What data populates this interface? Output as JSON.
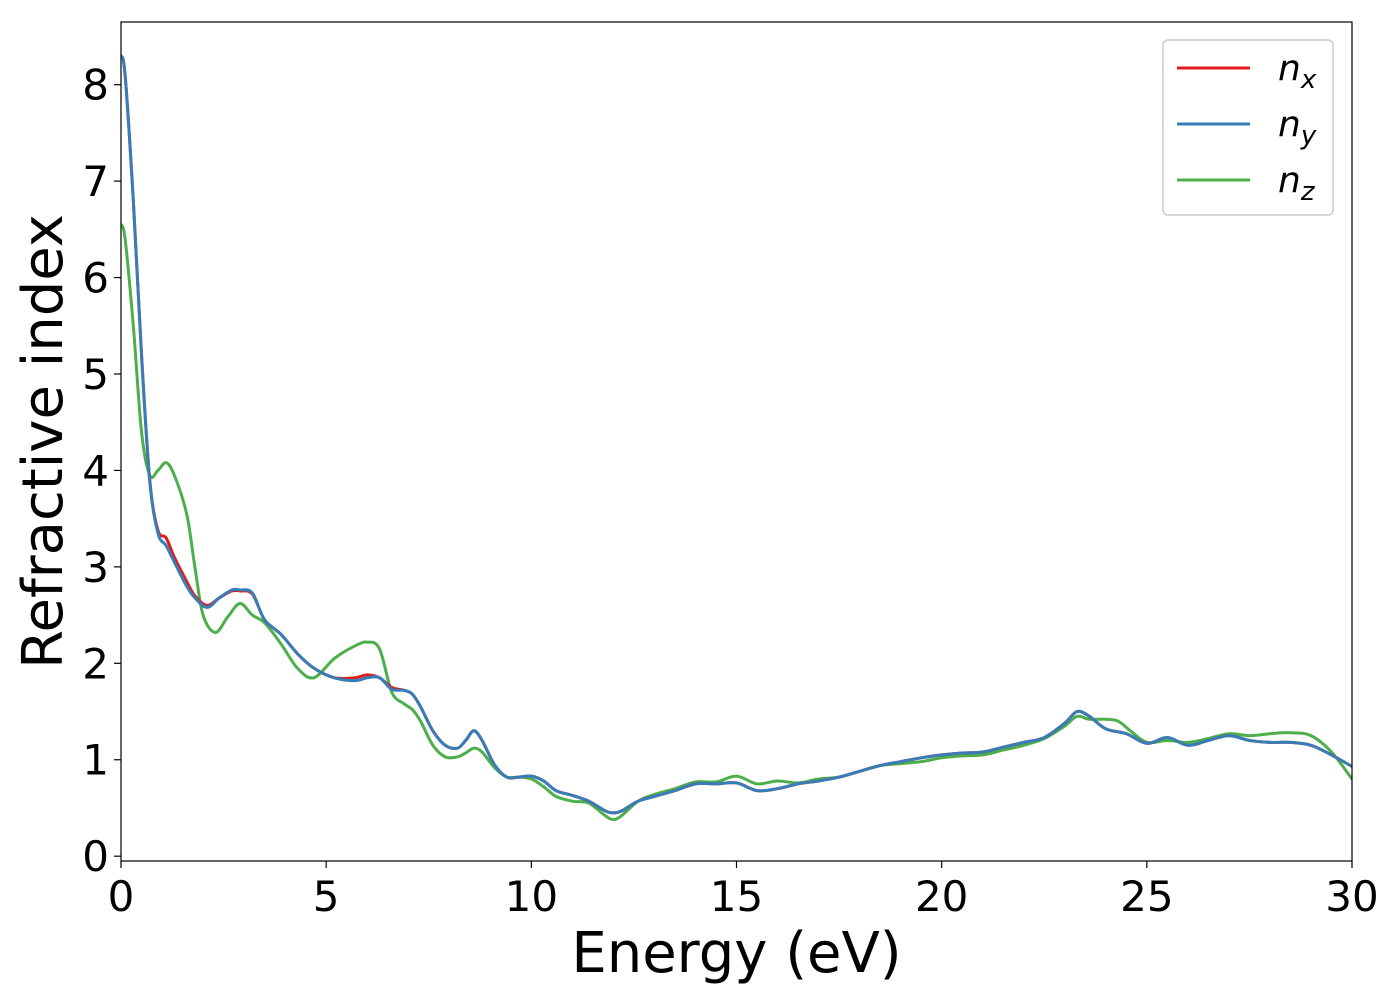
{
  "chart_data": {
    "type": "line",
    "xlabel": "Energy (eV)",
    "ylabel": "Refractive index",
    "xlim": [
      0,
      30
    ],
    "ylim": [
      -0.05,
      8.65
    ],
    "xticks": [
      0,
      5,
      10,
      15,
      20,
      25,
      30
    ],
    "yticks": [
      0,
      1,
      2,
      3,
      4,
      5,
      6,
      7,
      8
    ],
    "grid": false,
    "legend_position": "top-right",
    "series": [
      {
        "name": "n",
        "sub": "x",
        "color": "#e41a1c",
        "x": [
          0,
          0.1,
          0.3,
          0.5,
          0.7,
          0.9,
          1.1,
          1.3,
          1.6,
          1.8,
          2.1,
          2.4,
          2.7,
          2.9,
          3.2,
          3.5,
          3.9,
          4.3,
          4.7,
          5.2,
          5.7,
          6.0,
          6.3,
          6.6,
          6.9,
          7.1,
          7.3,
          7.6,
          7.9,
          8.2,
          8.4,
          8.6,
          8.8,
          9.1,
          9.4,
          9.7,
          10.0,
          10.3,
          10.6,
          11.0,
          11.4,
          11.8,
          12.0,
          12.2,
          12.6,
          13.0,
          13.5,
          14.0,
          14.5,
          15.0,
          15.5,
          16.0,
          16.5,
          17.0,
          17.5,
          18.0,
          18.5,
          19.0,
          19.5,
          20.0,
          20.5,
          21.0,
          21.5,
          22.0,
          22.5,
          23.0,
          23.3,
          23.6,
          24.0,
          24.5,
          25.0,
          25.5,
          26.0,
          26.5,
          27.0,
          27.5,
          28.0,
          28.5,
          29.0,
          29.5,
          30.0
        ],
        "y": [
          8.3,
          8.1,
          6.8,
          5.2,
          3.9,
          3.38,
          3.3,
          3.1,
          2.85,
          2.7,
          2.6,
          2.68,
          2.75,
          2.75,
          2.72,
          2.45,
          2.3,
          2.1,
          1.95,
          1.85,
          1.85,
          1.88,
          1.85,
          1.75,
          1.72,
          1.68,
          1.55,
          1.3,
          1.15,
          1.12,
          1.2,
          1.3,
          1.2,
          0.95,
          0.82,
          0.82,
          0.83,
          0.78,
          0.68,
          0.63,
          0.57,
          0.47,
          0.45,
          0.47,
          0.57,
          0.62,
          0.68,
          0.75,
          0.75,
          0.76,
          0.68,
          0.7,
          0.75,
          0.78,
          0.82,
          0.88,
          0.94,
          0.98,
          1.02,
          1.05,
          1.07,
          1.08,
          1.13,
          1.18,
          1.23,
          1.38,
          1.5,
          1.45,
          1.32,
          1.27,
          1.17,
          1.23,
          1.15,
          1.2,
          1.25,
          1.2,
          1.18,
          1.18,
          1.15,
          1.05,
          0.93
        ]
      },
      {
        "name": "n",
        "sub": "y",
        "color": "#377eb8",
        "x": [
          0,
          0.1,
          0.3,
          0.5,
          0.7,
          0.9,
          1.1,
          1.3,
          1.6,
          1.8,
          2.1,
          2.4,
          2.7,
          2.9,
          3.2,
          3.5,
          3.9,
          4.3,
          4.7,
          5.2,
          5.7,
          6.0,
          6.3,
          6.6,
          6.9,
          7.1,
          7.3,
          7.6,
          7.9,
          8.2,
          8.4,
          8.6,
          8.8,
          9.1,
          9.4,
          9.7,
          10.0,
          10.3,
          10.6,
          11.0,
          11.4,
          11.8,
          12.0,
          12.2,
          12.6,
          13.0,
          13.5,
          14.0,
          14.5,
          15.0,
          15.5,
          16.0,
          16.5,
          17.0,
          17.5,
          18.0,
          18.5,
          19.0,
          19.5,
          20.0,
          20.5,
          21.0,
          21.5,
          22.0,
          22.5,
          23.0,
          23.3,
          23.6,
          24.0,
          24.5,
          25.0,
          25.5,
          26.0,
          26.5,
          27.0,
          27.5,
          28.0,
          28.5,
          29.0,
          29.5,
          30.0
        ],
        "y": [
          8.3,
          8.1,
          6.8,
          5.2,
          3.9,
          3.35,
          3.22,
          3.05,
          2.8,
          2.68,
          2.58,
          2.68,
          2.76,
          2.76,
          2.73,
          2.45,
          2.3,
          2.1,
          1.95,
          1.85,
          1.82,
          1.85,
          1.85,
          1.73,
          1.72,
          1.68,
          1.55,
          1.3,
          1.15,
          1.12,
          1.2,
          1.3,
          1.2,
          0.95,
          0.82,
          0.82,
          0.83,
          0.78,
          0.68,
          0.63,
          0.57,
          0.47,
          0.45,
          0.47,
          0.57,
          0.62,
          0.68,
          0.75,
          0.75,
          0.76,
          0.68,
          0.7,
          0.75,
          0.78,
          0.82,
          0.88,
          0.94,
          0.98,
          1.02,
          1.05,
          1.07,
          1.08,
          1.13,
          1.18,
          1.23,
          1.38,
          1.5,
          1.45,
          1.32,
          1.27,
          1.17,
          1.23,
          1.15,
          1.2,
          1.25,
          1.2,
          1.18,
          1.18,
          1.15,
          1.05,
          0.93
        ]
      },
      {
        "name": "n",
        "sub": "z",
        "color": "#4daf4a",
        "x": [
          0,
          0.1,
          0.3,
          0.5,
          0.7,
          0.9,
          1.1,
          1.3,
          1.6,
          1.8,
          2.0,
          2.3,
          2.6,
          2.9,
          3.2,
          3.5,
          3.9,
          4.3,
          4.7,
          5.2,
          5.7,
          6.0,
          6.3,
          6.6,
          6.9,
          7.1,
          7.3,
          7.6,
          7.9,
          8.2,
          8.4,
          8.6,
          8.8,
          9.1,
          9.4,
          9.7,
          10.0,
          10.3,
          10.6,
          11.0,
          11.4,
          11.8,
          12.0,
          12.2,
          12.6,
          13.0,
          13.5,
          14.0,
          14.5,
          15.0,
          15.5,
          16.0,
          16.5,
          17.0,
          17.5,
          18.0,
          18.5,
          19.0,
          19.5,
          20.0,
          20.5,
          21.0,
          21.5,
          22.0,
          22.5,
          23.0,
          23.3,
          23.6,
          24.0,
          24.3,
          24.6,
          25.0,
          25.5,
          26.0,
          26.5,
          27.0,
          27.5,
          28.0,
          28.5,
          29.0,
          29.5,
          30.0
        ],
        "y": [
          6.55,
          6.4,
          5.5,
          4.4,
          3.95,
          4.0,
          4.08,
          3.95,
          3.55,
          3.0,
          2.5,
          2.32,
          2.48,
          2.62,
          2.5,
          2.42,
          2.2,
          1.95,
          1.85,
          2.05,
          2.18,
          2.22,
          2.15,
          1.7,
          1.58,
          1.52,
          1.4,
          1.15,
          1.03,
          1.03,
          1.07,
          1.12,
          1.08,
          0.92,
          0.82,
          0.82,
          0.8,
          0.72,
          0.62,
          0.57,
          0.55,
          0.42,
          0.38,
          0.42,
          0.57,
          0.64,
          0.7,
          0.77,
          0.77,
          0.83,
          0.75,
          0.78,
          0.76,
          0.8,
          0.82,
          0.88,
          0.94,
          0.96,
          0.98,
          1.02,
          1.04,
          1.05,
          1.1,
          1.15,
          1.22,
          1.35,
          1.45,
          1.42,
          1.42,
          1.4,
          1.3,
          1.18,
          1.2,
          1.18,
          1.22,
          1.27,
          1.25,
          1.27,
          1.28,
          1.25,
          1.08,
          0.8
        ]
      }
    ]
  }
}
